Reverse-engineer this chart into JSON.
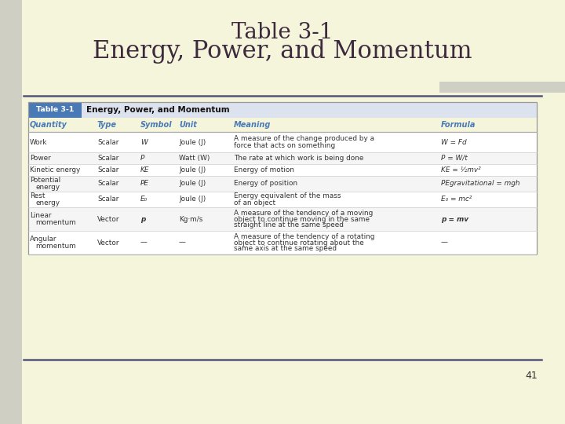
{
  "title_line1": "Table 3-1",
  "title_line2": "Energy, Power, and Momentum",
  "title_color": "#3d2b3d",
  "slide_bg": "#f5f5dc",
  "page_num": "41",
  "col_headers": [
    "Quantity",
    "Type",
    "Symbol",
    "Unit",
    "Meaning",
    "Formula"
  ],
  "col_header_color": "#4a7ab5",
  "table_label_bg": "#4a7ab5",
  "table_label_text": "Table 3-1",
  "table_sublabel_bg": "#dde3ee",
  "table_sublabel_text": "Energy, Power, and Momentum",
  "rows": [
    {
      "quantity": "Work",
      "type": "Scalar",
      "symbol": "W",
      "unit": "Joule (J)",
      "meaning": "A measure of the change produced by a\nforce that acts on something",
      "formula": "W = Fd",
      "formula_italic": true,
      "bold_symbol": false
    },
    {
      "quantity": "Power",
      "type": "Scalar",
      "symbol": "P",
      "unit": "Watt (W)",
      "meaning": "The rate at which work is being done",
      "formula": "P = W/t",
      "formula_italic": true,
      "bold_symbol": false
    },
    {
      "quantity": "Kinetic energy",
      "type": "Scalar",
      "symbol": "KE",
      "unit": "Joule (J)",
      "meaning": "Energy of motion",
      "formula": "KE = ½mv²",
      "formula_italic": true,
      "bold_symbol": false
    },
    {
      "quantity": "Potential\nenergy",
      "type": "Scalar",
      "symbol": "PE",
      "unit": "Joule (J)",
      "meaning": "Energy of position",
      "formula": "PEgravitational = mgh",
      "formula_italic": true,
      "bold_symbol": false
    },
    {
      "quantity": "Rest\nenergy",
      "type": "Scalar",
      "symbol": "E₀",
      "unit": "Joule (J)",
      "meaning": "Energy equivalent of the mass\nof an object",
      "formula": "E₀ = mc²",
      "formula_italic": true,
      "bold_symbol": false
    },
    {
      "quantity": "Linear\nmomentum",
      "type": "Vector",
      "symbol": "p",
      "unit": "Kg·m/s",
      "meaning": "A measure of the tendency of a moving\nobject to continue moving in the same\nstraight line at the same speed",
      "formula": "p = mv",
      "formula_italic": true,
      "bold_symbol": true
    },
    {
      "quantity": "Angular\nmomentum",
      "type": "Vector",
      "symbol": "—",
      "unit": "—",
      "meaning": "A measure of the tendency of a rotating\nobject to continue rotating about the\nsame axis at the same speed",
      "formula": "—",
      "formula_italic": false,
      "bold_symbol": false
    }
  ]
}
